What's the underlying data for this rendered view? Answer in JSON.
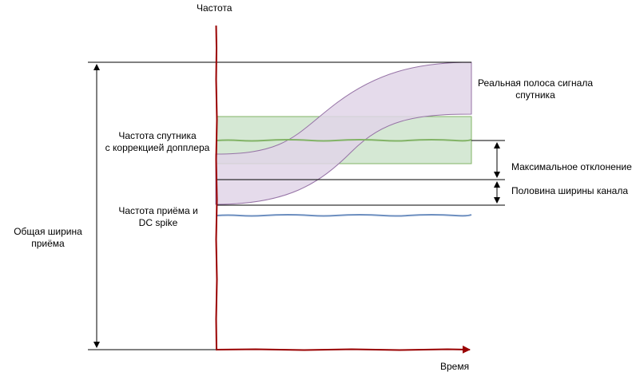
{
  "axes": {
    "y_label": "Частота",
    "x_label": "Время"
  },
  "labels": {
    "satellite_band": [
      "Реальная полоса сигнала",
      "спутника"
    ],
    "doppler_corrected": [
      "Частота спутника",
      "с коррекцией допплера"
    ],
    "max_deviation": "Максимальное отклонение",
    "half_channel": "Половина ширины канала",
    "rx_freq": [
      "Частота приёма и",
      "DC spike"
    ],
    "total_width": [
      "Общая ширина",
      "приёма"
    ]
  },
  "colors": {
    "axis": "#990000",
    "band_fill": "#e1d5e7",
    "band_stroke": "#9673a6",
    "channel_fill": "#d5e8d4",
    "channel_stroke": "#82b366",
    "rx_line": "#6c8ebf"
  }
}
